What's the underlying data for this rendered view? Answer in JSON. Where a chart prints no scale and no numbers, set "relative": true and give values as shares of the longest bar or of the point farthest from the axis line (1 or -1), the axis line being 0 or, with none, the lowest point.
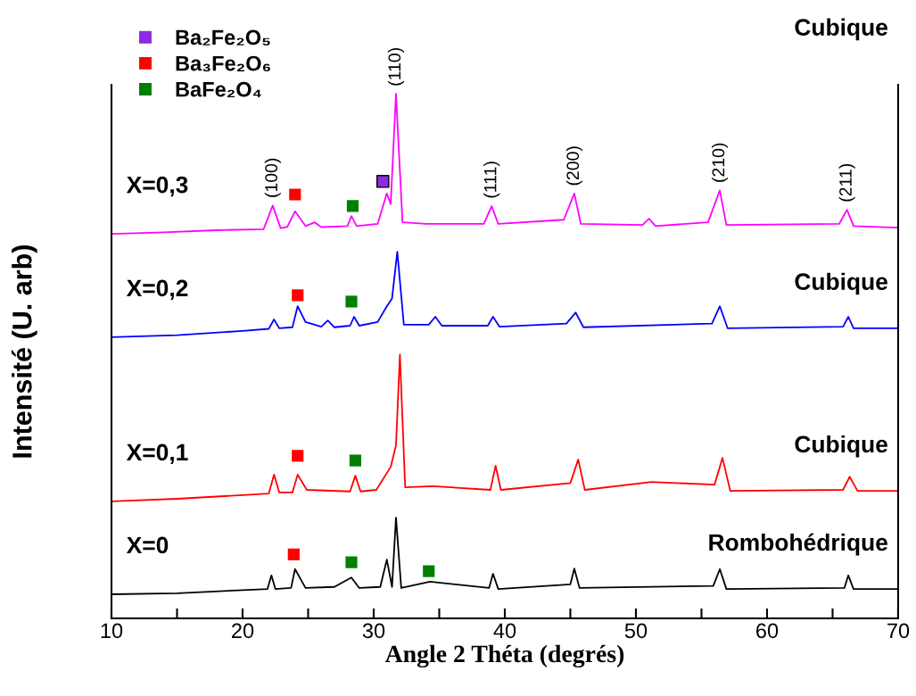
{
  "chart_data": {
    "type": "line",
    "relative": true,
    "xlabel": "Angle 2 Théta (degrés)",
    "ylabel": "Intensité (U. arb)",
    "xlim": [
      10,
      70
    ],
    "xticks": [
      10,
      {
        "value": 15,
        "label": null
      },
      20,
      {
        "value": 25,
        "label": null
      },
      30,
      {
        "value": 35,
        "label": null
      },
      40,
      {
        "value": 45,
        "label": null
      },
      50,
      {
        "value": 55,
        "label": null
      },
      60,
      {
        "value": 65,
        "label": null
      },
      70
    ],
    "tick_labels": "x",
    "grid": false,
    "legend": "top left",
    "line_style": "solid",
    "series": [
      {
        "name": "X=0,3",
        "color": "#ff00ff",
        "x": [
          10,
          14,
          18,
          21.6,
          22.3,
          22.9,
          23.4,
          24.0,
          24.8,
          25.5,
          26,
          28.0,
          28.3,
          28.7,
          30.3,
          31.0,
          31.3,
          31.7,
          32.2,
          34,
          38.4,
          39.0,
          39.5,
          44.5,
          45.3,
          45.8,
          50.5,
          51.0,
          51.5,
          55.5,
          56.4,
          56.9,
          65.5,
          66.1,
          66.6,
          70
        ],
        "values": [
          0.733,
          0.736,
          0.74,
          0.742,
          0.787,
          0.744,
          0.746,
          0.776,
          0.748,
          0.755,
          0.746,
          0.748,
          0.767,
          0.748,
          0.752,
          0.81,
          0.79,
          1.0,
          0.755,
          0.752,
          0.752,
          0.786,
          0.752,
          0.76,
          0.81,
          0.752,
          0.75,
          0.762,
          0.748,
          0.755,
          0.816,
          0.75,
          0.752,
          0.779,
          0.748,
          0.745
        ]
      },
      {
        "name": "X=0,2",
        "color": "#0000ff",
        "x": [
          10,
          15,
          20,
          22.0,
          22.4,
          22.8,
          23.8,
          24.2,
          24.8,
          26,
          26.5,
          27,
          28.2,
          28.5,
          28.9,
          30.3,
          31.0,
          31.4,
          31.8,
          32.3,
          34.2,
          34.7,
          35.2,
          38.7,
          39.1,
          39.6,
          44.7,
          45.4,
          46,
          55.8,
          56.4,
          57,
          65.8,
          66.2,
          66.6,
          70
        ],
        "values": [
          0.536,
          0.54,
          0.548,
          0.552,
          0.57,
          0.553,
          0.555,
          0.595,
          0.565,
          0.556,
          0.568,
          0.555,
          0.558,
          0.575,
          0.558,
          0.565,
          0.595,
          0.61,
          0.699,
          0.56,
          0.56,
          0.575,
          0.558,
          0.558,
          0.575,
          0.556,
          0.562,
          0.583,
          0.555,
          0.562,
          0.595,
          0.553,
          0.556,
          0.575,
          0.553,
          0.553
        ]
      },
      {
        "name": "X=0,1",
        "color": "#ff0000",
        "x": [
          10,
          15,
          20,
          22.0,
          22.4,
          22.8,
          23.8,
          24.2,
          24.9,
          28.2,
          28.6,
          29.0,
          30.2,
          31.3,
          31.7,
          32.0,
          32.4,
          34.5,
          38.9,
          39.3,
          39.7,
          45.0,
          45.6,
          46.1,
          51.2,
          56.0,
          56.6,
          57.2,
          65.8,
          66.3,
          66.9,
          70
        ],
        "values": [
          0.223,
          0.228,
          0.235,
          0.238,
          0.274,
          0.24,
          0.24,
          0.274,
          0.245,
          0.242,
          0.272,
          0.242,
          0.245,
          0.289,
          0.33,
          0.503,
          0.25,
          0.252,
          0.245,
          0.291,
          0.245,
          0.258,
          0.303,
          0.245,
          0.26,
          0.255,
          0.306,
          0.243,
          0.245,
          0.27,
          0.243,
          0.243
        ]
      },
      {
        "name": "X=0",
        "color": "#000000",
        "x": [
          10,
          15,
          20,
          21.9,
          22.2,
          22.5,
          23.7,
          24.0,
          24.8,
          27,
          28.3,
          28.9,
          30.5,
          31.0,
          31.4,
          31.7,
          32.1,
          34.3,
          38.8,
          39.1,
          39.5,
          45.0,
          45.3,
          45.7,
          55.9,
          56.4,
          56.9,
          65.9,
          66.2,
          66.6,
          70
        ],
        "values": [
          0.046,
          0.048,
          0.054,
          0.056,
          0.082,
          0.056,
          0.058,
          0.094,
          0.058,
          0.06,
          0.078,
          0.058,
          0.06,
          0.112,
          0.06,
          0.192,
          0.058,
          0.07,
          0.058,
          0.085,
          0.056,
          0.065,
          0.095,
          0.058,
          0.062,
          0.094,
          0.056,
          0.058,
          0.082,
          0.056,
          0.056
        ]
      },
      {
        "type": "scatter",
        "name": "Ba₂Fe₂O₅",
        "marker": "square",
        "color": "#8b2be2",
        "x": [
          30.7
        ],
        "values": [
          0.833
        ]
      },
      {
        "type": "scatter",
        "name": "Ba₃Fe₂O₆",
        "marker": "square",
        "color": "#ff0000",
        "x": [
          24.0,
          24.2,
          24.2,
          23.9
        ],
        "values": [
          0.808,
          0.616,
          0.31,
          0.122
        ]
      },
      {
        "type": "scatter",
        "name": "BaFe₂O₄",
        "marker": "square",
        "color": "#008000",
        "x": [
          28.4,
          28.3,
          28.6,
          28.3,
          34.2
        ],
        "values": [
          0.786,
          0.604,
          0.301,
          0.107,
          0.09
        ]
      }
    ],
    "annotations": [
      "Cubique",
      "Cubique",
      "Cubique",
      "Rombohédrique",
      {
        "text": "(100)",
        "x": 22.3,
        "y": 0.787
      },
      {
        "text": "(110)",
        "x": 31.7,
        "y": 1.0
      },
      {
        "text": "(111)",
        "x": 39.0,
        "y": 0.786
      },
      {
        "text": "(200)",
        "x": 45.3,
        "y": 0.81
      },
      {
        "text": "(210)",
        "x": 56.4,
        "y": 0.816
      },
      {
        "text": "(211)",
        "x": 66.1,
        "y": 0.779
      }
    ]
  }
}
